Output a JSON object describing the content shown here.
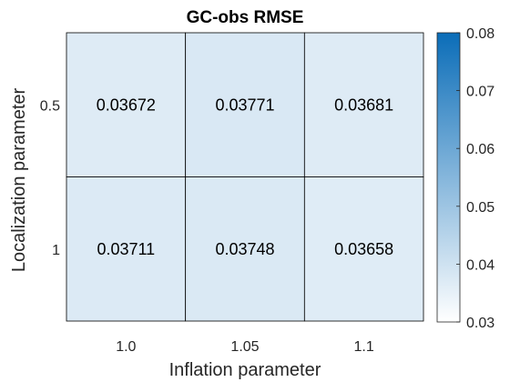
{
  "chart_data": {
    "type": "heatmap",
    "title": "GC-obs RMSE",
    "xlabel": "Inflation parameter",
    "ylabel": "Localization parameter",
    "x_categories": [
      "1.0",
      "1.05",
      "1.1"
    ],
    "y_categories": [
      "0.5",
      "1"
    ],
    "values": [
      [
        0.03672,
        0.03771,
        0.03681
      ],
      [
        0.03711,
        0.03748,
        0.03658
      ]
    ],
    "value_labels": [
      [
        "0.03672",
        "0.03771",
        "0.03681"
      ],
      [
        "0.03711",
        "0.03748",
        "0.03658"
      ]
    ],
    "colorbar": {
      "range": [
        0.03,
        0.08
      ],
      "ticks": [
        "0.03",
        "0.04",
        "0.05",
        "0.06",
        "0.07",
        "0.08"
      ],
      "low_color": "#ffffff",
      "high_color": "#0b6db8"
    },
    "grid": true
  }
}
